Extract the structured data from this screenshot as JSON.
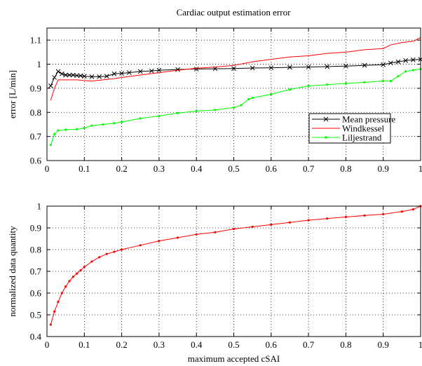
{
  "figure": {
    "title": "Cardiac output estimation error"
  },
  "chart_data": [
    {
      "type": "line",
      "title": "Cardiac output estimation error",
      "xlabel": "",
      "ylabel": "error [L/min]",
      "xlim": [
        0,
        1
      ],
      "ylim": [
        0.6,
        1.15
      ],
      "grid": true,
      "grid_style": "dotted",
      "legend": "middle-right",
      "x_ticks": [
        "0",
        "0.1",
        "0.2",
        "0.3",
        "0.4",
        "0.5",
        "0.6",
        "0.7",
        "0.8",
        "0.9",
        "1"
      ],
      "y_ticks": [
        "0.6",
        "0.7",
        "0.8",
        "0.9",
        "1",
        "1.1"
      ],
      "series": [
        {
          "name": "Mean pressure",
          "color": "#000000",
          "marker": "x",
          "points": [
            [
              0.01,
              0.91
            ],
            [
              0.02,
              0.945
            ],
            [
              0.03,
              0.97
            ],
            [
              0.04,
              0.96
            ],
            [
              0.05,
              0.955
            ],
            [
              0.06,
              0.955
            ],
            [
              0.07,
              0.955
            ],
            [
              0.08,
              0.953
            ],
            [
              0.09,
              0.952
            ],
            [
              0.1,
              0.95
            ],
            [
              0.12,
              0.948
            ],
            [
              0.14,
              0.948
            ],
            [
              0.16,
              0.95
            ],
            [
              0.18,
              0.96
            ],
            [
              0.2,
              0.962
            ],
            [
              0.22,
              0.965
            ],
            [
              0.25,
              0.97
            ],
            [
              0.28,
              0.972
            ],
            [
              0.3,
              0.975
            ],
            [
              0.35,
              0.978
            ],
            [
              0.4,
              0.98
            ],
            [
              0.45,
              0.981
            ],
            [
              0.5,
              0.982
            ],
            [
              0.55,
              0.984
            ],
            [
              0.6,
              0.985
            ],
            [
              0.65,
              0.987
            ],
            [
              0.7,
              0.988
            ],
            [
              0.75,
              0.99
            ],
            [
              0.8,
              0.992
            ],
            [
              0.85,
              0.995
            ],
            [
              0.9,
              0.998
            ],
            [
              0.92,
              1.005
            ],
            [
              0.94,
              1.01
            ],
            [
              0.96,
              1.015
            ],
            [
              0.98,
              1.018
            ],
            [
              1.0,
              1.02
            ]
          ]
        },
        {
          "name": "Windkessel",
          "color": "#ff0000",
          "marker": "none",
          "points": [
            [
              0.01,
              0.85
            ],
            [
              0.02,
              0.9
            ],
            [
              0.03,
              0.935
            ],
            [
              0.05,
              0.935
            ],
            [
              0.08,
              0.935
            ],
            [
              0.1,
              0.932
            ],
            [
              0.12,
              0.93
            ],
            [
              0.15,
              0.935
            ],
            [
              0.18,
              0.94
            ],
            [
              0.2,
              0.945
            ],
            [
              0.25,
              0.955
            ],
            [
              0.3,
              0.965
            ],
            [
              0.35,
              0.975
            ],
            [
              0.4,
              0.983
            ],
            [
              0.45,
              0.988
            ],
            [
              0.5,
              0.995
            ],
            [
              0.55,
              1.01
            ],
            [
              0.6,
              1.02
            ],
            [
              0.65,
              1.03
            ],
            [
              0.7,
              1.035
            ],
            [
              0.75,
              1.045
            ],
            [
              0.8,
              1.05
            ],
            [
              0.85,
              1.06
            ],
            [
              0.9,
              1.065
            ],
            [
              0.92,
              1.08
            ],
            [
              0.95,
              1.09
            ],
            [
              0.98,
              1.095
            ],
            [
              1.0,
              1.11
            ]
          ]
        },
        {
          "name": "Liljestrand",
          "color": "#00ff00",
          "marker": "dot",
          "points": [
            [
              0.01,
              0.665
            ],
            [
              0.02,
              0.71
            ],
            [
              0.03,
              0.725
            ],
            [
              0.05,
              0.728
            ],
            [
              0.08,
              0.73
            ],
            [
              0.1,
              0.735
            ],
            [
              0.12,
              0.745
            ],
            [
              0.15,
              0.75
            ],
            [
              0.18,
              0.755
            ],
            [
              0.2,
              0.76
            ],
            [
              0.25,
              0.775
            ],
            [
              0.3,
              0.785
            ],
            [
              0.35,
              0.797
            ],
            [
              0.4,
              0.805
            ],
            [
              0.45,
              0.81
            ],
            [
              0.5,
              0.82
            ],
            [
              0.52,
              0.83
            ],
            [
              0.54,
              0.855
            ],
            [
              0.55,
              0.86
            ],
            [
              0.6,
              0.875
            ],
            [
              0.65,
              0.895
            ],
            [
              0.7,
              0.91
            ],
            [
              0.75,
              0.915
            ],
            [
              0.8,
              0.92
            ],
            [
              0.85,
              0.925
            ],
            [
              0.9,
              0.93
            ],
            [
              0.92,
              0.93
            ],
            [
              0.94,
              0.95
            ],
            [
              0.96,
              0.97
            ],
            [
              0.98,
              0.975
            ],
            [
              1.0,
              0.98
            ]
          ]
        }
      ]
    },
    {
      "type": "line",
      "title": "",
      "xlabel": "maximum accepted cSAI",
      "ylabel": "normalized data quantity",
      "xlim": [
        0,
        1
      ],
      "ylim": [
        0.4,
        1
      ],
      "grid": true,
      "grid_style": "dotted",
      "x_ticks": [
        "0",
        "0.1",
        "0.2",
        "0.3",
        "0.4",
        "0.5",
        "0.6",
        "0.7",
        "0.8",
        "0.9",
        "1"
      ],
      "y_ticks": [
        "0.4",
        "0.5",
        "0.6",
        "0.7",
        "0.8",
        "0.9",
        "1"
      ],
      "series": [
        {
          "color": "#ff0000",
          "marker": "dot",
          "points": [
            [
              0.01,
              0.455
            ],
            [
              0.02,
              0.515
            ],
            [
              0.03,
              0.56
            ],
            [
              0.04,
              0.6
            ],
            [
              0.05,
              0.63
            ],
            [
              0.06,
              0.655
            ],
            [
              0.07,
              0.675
            ],
            [
              0.08,
              0.69
            ],
            [
              0.09,
              0.705
            ],
            [
              0.1,
              0.72
            ],
            [
              0.12,
              0.745
            ],
            [
              0.14,
              0.765
            ],
            [
              0.16,
              0.78
            ],
            [
              0.18,
              0.79
            ],
            [
              0.2,
              0.8
            ],
            [
              0.25,
              0.82
            ],
            [
              0.3,
              0.84
            ],
            [
              0.35,
              0.855
            ],
            [
              0.4,
              0.87
            ],
            [
              0.45,
              0.88
            ],
            [
              0.5,
              0.895
            ],
            [
              0.55,
              0.905
            ],
            [
              0.6,
              0.915
            ],
            [
              0.65,
              0.925
            ],
            [
              0.7,
              0.935
            ],
            [
              0.75,
              0.943
            ],
            [
              0.8,
              0.95
            ],
            [
              0.85,
              0.957
            ],
            [
              0.9,
              0.963
            ],
            [
              0.95,
              0.975
            ],
            [
              0.98,
              0.985
            ],
            [
              1.0,
              1.0
            ]
          ]
        }
      ]
    }
  ]
}
